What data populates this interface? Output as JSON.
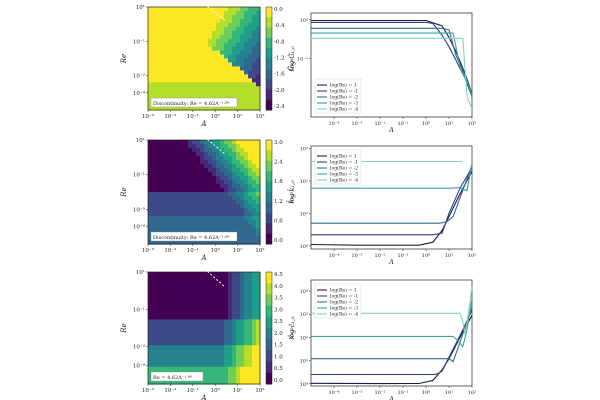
{
  "chart_data": [
    {
      "type": "heatmap",
      "xlabel": "A",
      "ylabel": "Re",
      "xlim": [
        0.001,
        100
      ],
      "ylim": [
        1e-05,
        10
      ],
      "xscale": "log",
      "yscale": "log",
      "xticks": [
        "10⁻³",
        "10⁻²",
        "10⁻¹",
        "10⁰",
        "10¹",
        "10²"
      ],
      "yticks": [
        "10¹",
        "10⁻¹",
        "10⁻³",
        "10⁻⁴"
      ],
      "colorbar_label": "log Ĝ₁,₀",
      "colorbar_ticks": [
        "0.0",
        "-0.4",
        "-0.8",
        "-1.2",
        "-1.6",
        "-2.0",
        "-2.4"
      ],
      "clim": [
        -2.6,
        0
      ],
      "annotation": "Discontinuity: Re = 4.62A⁻¹·⁰⁶"
    },
    {
      "type": "line",
      "xlabel": "A",
      "ylabel": "Ĝ₁,₀",
      "xscale": "log",
      "yscale": "log",
      "xlim": [
        1e-05,
        100
      ],
      "ylim": [
        0.003,
        1.5
      ],
      "xticks": [
        "10⁻⁴",
        "10⁻³",
        "10⁻²",
        "10⁻¹",
        "10⁰",
        "10¹",
        "10²"
      ],
      "yticks": [
        "10⁰",
        "10⁻¹"
      ],
      "legend": "lower-left",
      "series": [
        {
          "name": "log(Re) = 1",
          "color": "#1b1b4b",
          "x": [
            1e-05,
            1,
            5,
            10,
            20,
            50,
            100
          ],
          "y": [
            0.95,
            0.95,
            0.7,
            0.35,
            0.15,
            0.04,
            0.012
          ]
        },
        {
          "name": "log(Re) = -1",
          "color": "#2f3f7f",
          "x": [
            1e-05,
            1,
            2,
            5,
            10,
            20,
            50,
            100
          ],
          "y": [
            0.85,
            0.85,
            0.8,
            0.4,
            0.2,
            0.09,
            0.03,
            0.01
          ]
        },
        {
          "name": "log(Re) = -2",
          "color": "#2f6f8f",
          "x": [
            1e-05,
            5,
            10,
            20,
            50,
            100
          ],
          "y": [
            0.6,
            0.6,
            0.55,
            0.12,
            0.035,
            0.012
          ]
        },
        {
          "name": "log(Re) = -3",
          "color": "#3aa0a0",
          "x": [
            1e-05,
            15,
            20,
            30,
            40,
            70,
            100
          ],
          "y": [
            0.45,
            0.45,
            0.2,
            0.06,
            0.04,
            0.02,
            0.01
          ]
        },
        {
          "name": "log(Re) = -4",
          "color": "#86d4b8",
          "x": [
            1e-05,
            40,
            50,
            60,
            70,
            100
          ],
          "y": [
            0.33,
            0.33,
            0.05,
            0.012,
            0.008,
            0.005
          ]
        }
      ]
    },
    {
      "type": "heatmap",
      "xlabel": "A",
      "ylabel": "Re",
      "xlim": [
        0.001,
        100
      ],
      "ylim": [
        1e-05,
        10
      ],
      "xscale": "log",
      "yscale": "log",
      "xticks": [
        "10⁻³",
        "10⁻²",
        "10⁻¹",
        "10⁰",
        "10¹",
        "10²"
      ],
      "yticks": [
        "10¹",
        "10⁻¹",
        "10⁻³",
        "10⁻⁴"
      ],
      "colorbar_label": "log k̂₁,₀",
      "colorbar_ticks": [
        "3.0",
        "2.4",
        "1.8",
        "1.2",
        "0.6",
        "0.0"
      ],
      "clim": [
        0,
        3
      ],
      "annotation": "Discontinuity: Re = 4.62A⁻¹·⁰⁶"
    },
    {
      "type": "line",
      "xlabel": "A",
      "ylabel": "k̂₁,₀",
      "xscale": "log",
      "yscale": "log",
      "xlim": [
        1e-05,
        100
      ],
      "ylim": [
        0.8,
        1200
      ],
      "xticks": [
        "10⁻⁴",
        "10⁻³",
        "10⁻²",
        "10⁻¹",
        "10⁰",
        "10¹",
        "10²"
      ],
      "yticks": [
        "10⁰",
        "10¹",
        "10²",
        "10³"
      ],
      "legend": "upper-left",
      "series": [
        {
          "name": "log(Re) = 1",
          "color": "#1b1b4b",
          "x": [
            1e-05,
            0.001,
            0.5,
            2,
            5,
            10,
            30,
            100
          ],
          "y": [
            1.1,
            1.05,
            1.05,
            1.3,
            3,
            8,
            40,
            200
          ]
        },
        {
          "name": "log(Re) = -1",
          "color": "#2f3f7f",
          "x": [
            1e-05,
            2,
            3,
            5,
            10,
            30,
            100
          ],
          "y": [
            2.2,
            2.2,
            2.3,
            2.5,
            10,
            60,
            260
          ]
        },
        {
          "name": "log(Re) = -2",
          "color": "#2f6f8f",
          "x": [
            1e-05,
            4,
            8,
            15,
            30,
            100
          ],
          "y": [
            5,
            5,
            5.5,
            8,
            30,
            300
          ]
        },
        {
          "name": "log(Re) = -3",
          "color": "#3aa0a0",
          "x": [
            1e-05,
            10,
            30,
            60,
            100
          ],
          "y": [
            60,
            60,
            62,
            50,
            350
          ]
        },
        {
          "name": "log(Re) = -4",
          "color": "#86d4b8",
          "x": [
            1e-05,
            40
          ],
          "y": [
            400,
            400
          ]
        }
      ]
    },
    {
      "type": "heatmap",
      "xlabel": "A",
      "ylabel": "Re",
      "xlim": [
        0.001,
        100
      ],
      "ylim": [
        1e-05,
        10
      ],
      "xscale": "log",
      "yscale": "log",
      "xticks": [
        "10⁻³",
        "10⁻²",
        "10⁻¹",
        "10⁰",
        "10¹",
        "10²"
      ],
      "yticks": [
        "10¹",
        "10⁻¹",
        "10⁻³",
        "10⁻⁴"
      ],
      "colorbar_label": "log ĉ₁,₀",
      "colorbar_ticks": [
        "4.5",
        "4.0",
        "3.5",
        "3.0",
        "2.5",
        "2.0",
        "1.5",
        "1.0",
        "0.5",
        "0.0"
      ],
      "clim": [
        0,
        4.5
      ],
      "annotation": "Re = 4.62A⁻¹·⁰⁶"
    },
    {
      "type": "line",
      "xlabel": "A",
      "ylabel": "ĉ₁,₀",
      "xscale": "log",
      "yscale": "log",
      "xlim": [
        1e-05,
        100
      ],
      "ylim": [
        0.8,
        30000
      ],
      "xticks": [
        "10⁻⁴",
        "10⁻³",
        "10⁻²",
        "10⁻¹",
        "10⁰",
        "10¹",
        "10²"
      ],
      "yticks": [
        "10⁰",
        "10¹",
        "10²",
        "10³",
        "10⁴"
      ],
      "legend": "upper-left",
      "series": [
        {
          "name": "log(Re) = 1",
          "color": "#1b1b4b",
          "x": [
            1e-05,
            0.01,
            0.5,
            2,
            5,
            10,
            30,
            100
          ],
          "y": [
            1.05,
            1.02,
            1.03,
            1.4,
            4,
            12,
            100,
            900
          ]
        },
        {
          "name": "log(Re) = -1",
          "color": "#2f3f7f",
          "x": [
            1e-05,
            2,
            3,
            5,
            10,
            30,
            100
          ],
          "y": [
            2.5,
            2.5,
            2.6,
            3.5,
            14,
            120,
            1500
          ]
        },
        {
          "name": "log(Re) = -2",
          "color": "#2f6f8f",
          "x": [
            1e-05,
            5,
            10,
            15,
            30,
            100
          ],
          "y": [
            12,
            12,
            12,
            9,
            60,
            2000
          ]
        },
        {
          "name": "log(Re) = -3",
          "color": "#3aa0a0",
          "x": [
            1e-05,
            15,
            25,
            40,
            60,
            100
          ],
          "y": [
            110,
            110,
            70,
            40,
            200,
            5000
          ]
        },
        {
          "name": "log(Re) = -4",
          "color": "#86d4b8",
          "x": [
            1e-05,
            30,
            40,
            50,
            60,
            100
          ],
          "y": [
            1100,
            1100,
            500,
            130,
            400,
            15000
          ]
        }
      ]
    }
  ]
}
